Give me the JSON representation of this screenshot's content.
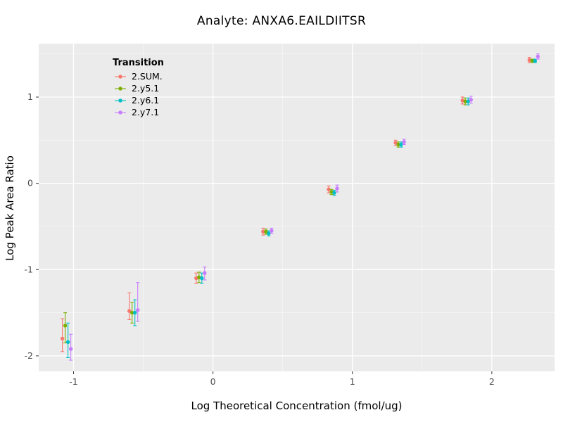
{
  "title": "Analyte: ANXA6.EAILDIITSR",
  "chart_data": {
    "type": "scatter",
    "title": "Analyte: ANXA6.EAILDIITSR",
    "xlabel": "Log Theoretical Concentration (fmol/ug)",
    "ylabel": "Log Peak Area Ratio",
    "xlim": [
      -1.25,
      2.45
    ],
    "ylim": [
      -2.18,
      1.62
    ],
    "x_major_ticks": [
      -1,
      0,
      1,
      2
    ],
    "y_major_ticks": [
      -2,
      -1,
      0,
      1
    ],
    "x_minor_ticks": [
      -0.5,
      0.5,
      1.5
    ],
    "y_minor_ticks": [
      -1.5,
      -0.5,
      0.5,
      1.5
    ],
    "grid": true,
    "panel_color": "#EBEBEB",
    "grid_color": "#FFFFFF",
    "tick_label_color": "#4d4d4d",
    "legend": {
      "title": "Transition",
      "position": "inside-top-left"
    },
    "x": [
      -1.05,
      -0.57,
      -0.09,
      0.39,
      0.86,
      1.34,
      1.82,
      2.3
    ],
    "series": [
      {
        "name": "2.SUM.",
        "color": "#F8766D",
        "points": [
          {
            "y": -1.8,
            "ylo": -1.95,
            "yhi": -1.57
          },
          {
            "y": -1.48,
            "ylo": -1.58,
            "yhi": -1.27
          },
          {
            "y": -1.1,
            "ylo": -1.16,
            "yhi": -1.04
          },
          {
            "y": -0.56,
            "ylo": -0.6,
            "yhi": -0.52
          },
          {
            "y": -0.07,
            "ylo": -0.11,
            "yhi": -0.03
          },
          {
            "y": 0.47,
            "ylo": 0.44,
            "yhi": 0.5
          },
          {
            "y": 0.96,
            "ylo": 0.92,
            "yhi": 1.0
          },
          {
            "y": 1.43,
            "ylo": 1.4,
            "yhi": 1.46
          }
        ]
      },
      {
        "name": "2.y5.1",
        "color": "#7CAE00",
        "points": [
          {
            "y": -1.65,
            "ylo": -1.85,
            "yhi": -1.5
          },
          {
            "y": -1.5,
            "ylo": -1.62,
            "yhi": -1.38
          },
          {
            "y": -1.09,
            "ylo": -1.15,
            "yhi": -1.03
          },
          {
            "y": -0.56,
            "ylo": -0.59,
            "yhi": -0.53
          },
          {
            "y": -0.1,
            "ylo": -0.13,
            "yhi": -0.07
          },
          {
            "y": 0.45,
            "ylo": 0.42,
            "yhi": 0.48
          },
          {
            "y": 0.95,
            "ylo": 0.91,
            "yhi": 0.99
          },
          {
            "y": 1.42,
            "ylo": 1.4,
            "yhi": 1.44
          }
        ]
      },
      {
        "name": "2.y6.1",
        "color": "#00BFC4",
        "points": [
          {
            "y": -1.84,
            "ylo": -2.02,
            "yhi": -1.62
          },
          {
            "y": -1.5,
            "ylo": -1.65,
            "yhi": -1.35
          },
          {
            "y": -1.1,
            "ylo": -1.16,
            "yhi": -1.04
          },
          {
            "y": -0.58,
            "ylo": -0.61,
            "yhi": -0.55
          },
          {
            "y": -0.11,
            "ylo": -0.14,
            "yhi": -0.08
          },
          {
            "y": 0.45,
            "ylo": 0.42,
            "yhi": 0.48
          },
          {
            "y": 0.95,
            "ylo": 0.91,
            "yhi": 0.99
          },
          {
            "y": 1.42,
            "ylo": 1.4,
            "yhi": 1.44
          }
        ]
      },
      {
        "name": "2.y7.1",
        "color": "#C77CFF",
        "points": [
          {
            "y": -1.92,
            "ylo": -2.05,
            "yhi": -1.75
          },
          {
            "y": -1.47,
            "ylo": -1.6,
            "yhi": -1.15
          },
          {
            "y": -1.04,
            "ylo": -1.12,
            "yhi": -0.97
          },
          {
            "y": -0.55,
            "ylo": -0.58,
            "yhi": -0.52
          },
          {
            "y": -0.06,
            "ylo": -0.1,
            "yhi": -0.02
          },
          {
            "y": 0.48,
            "ylo": 0.45,
            "yhi": 0.51
          },
          {
            "y": 0.97,
            "ylo": 0.93,
            "yhi": 1.01
          },
          {
            "y": 1.47,
            "ylo": 1.44,
            "yhi": 1.5
          }
        ]
      }
    ]
  }
}
